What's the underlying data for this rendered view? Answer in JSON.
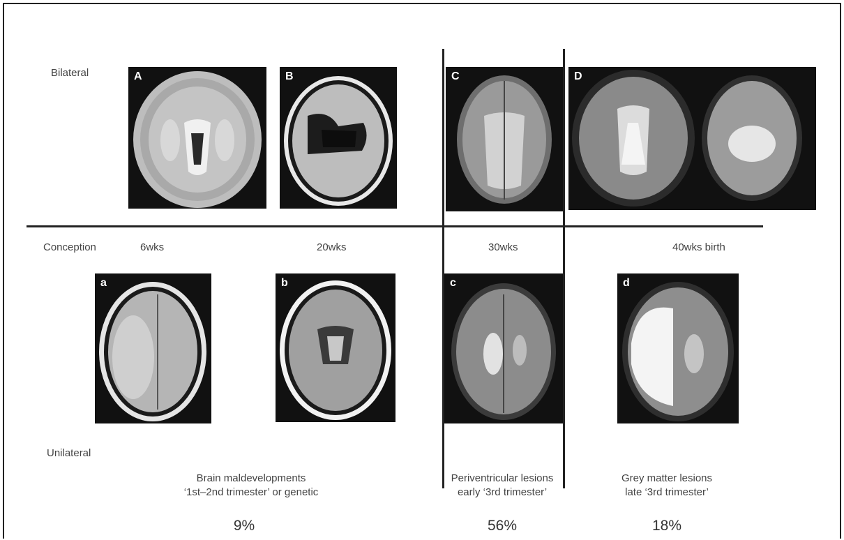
{
  "rows": {
    "top_label": "Bilateral",
    "bottom_label": "Unilateral"
  },
  "timeline": {
    "conception": "Conception",
    "w6": "6wks",
    "w20": "20wks",
    "w30": "30wks",
    "w40": "40wks birth"
  },
  "panels": {
    "A": "A",
    "B": "B",
    "C": "C",
    "D": "D",
    "a": "a",
    "b": "b",
    "c": "c",
    "d": "d"
  },
  "groups": [
    {
      "line1": "Brain maldevelopments",
      "line2": "‘1st–2nd trimester’ or genetic",
      "percent": "9%"
    },
    {
      "line1": "Periventricular lesions",
      "line2": "early ‘3rd trimester’",
      "percent": "56%"
    },
    {
      "line1": "Grey matter lesions",
      "line2": "late ‘3rd trimester’",
      "percent": "18%"
    }
  ]
}
